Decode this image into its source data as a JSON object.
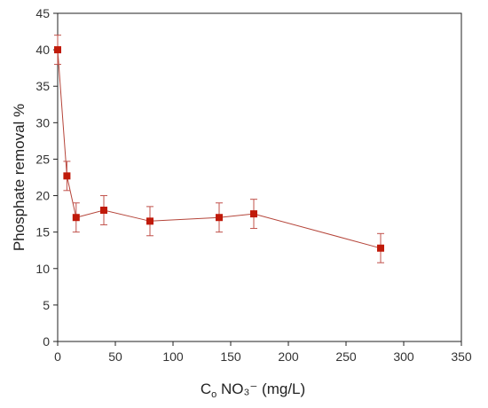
{
  "chart_data": {
    "type": "scatter",
    "xlabel_parts": {
      "main": "C",
      "sub": "o",
      "rest": " NO₃⁻ (mg/L)"
    },
    "ylabel": "Phosphate removal %",
    "xlim": [
      0,
      350
    ],
    "ylim": [
      0,
      45
    ],
    "x_ticks": [
      "0",
      "50",
      "100",
      "150",
      "200",
      "250",
      "300",
      "350"
    ],
    "y_ticks": [
      "0",
      "5",
      "10",
      "15",
      "20",
      "25",
      "30",
      "35",
      "40",
      "45"
    ],
    "grid": false,
    "marker": "square",
    "series": [
      {
        "x": [
          0,
          8,
          16,
          40,
          80,
          140,
          170,
          280
        ],
        "y": [
          40.0,
          22.7,
          17.0,
          18.0,
          16.5,
          17.0,
          17.5,
          12.8
        ],
        "error": [
          2.0,
          2.0,
          2.0,
          2.0,
          2.0,
          2.0,
          2.0,
          2.0
        ]
      }
    ],
    "colors": {
      "marker": "#c01a0a",
      "line": "#b5453a",
      "errorbar": "#c0504a",
      "axis": "#222222"
    }
  }
}
